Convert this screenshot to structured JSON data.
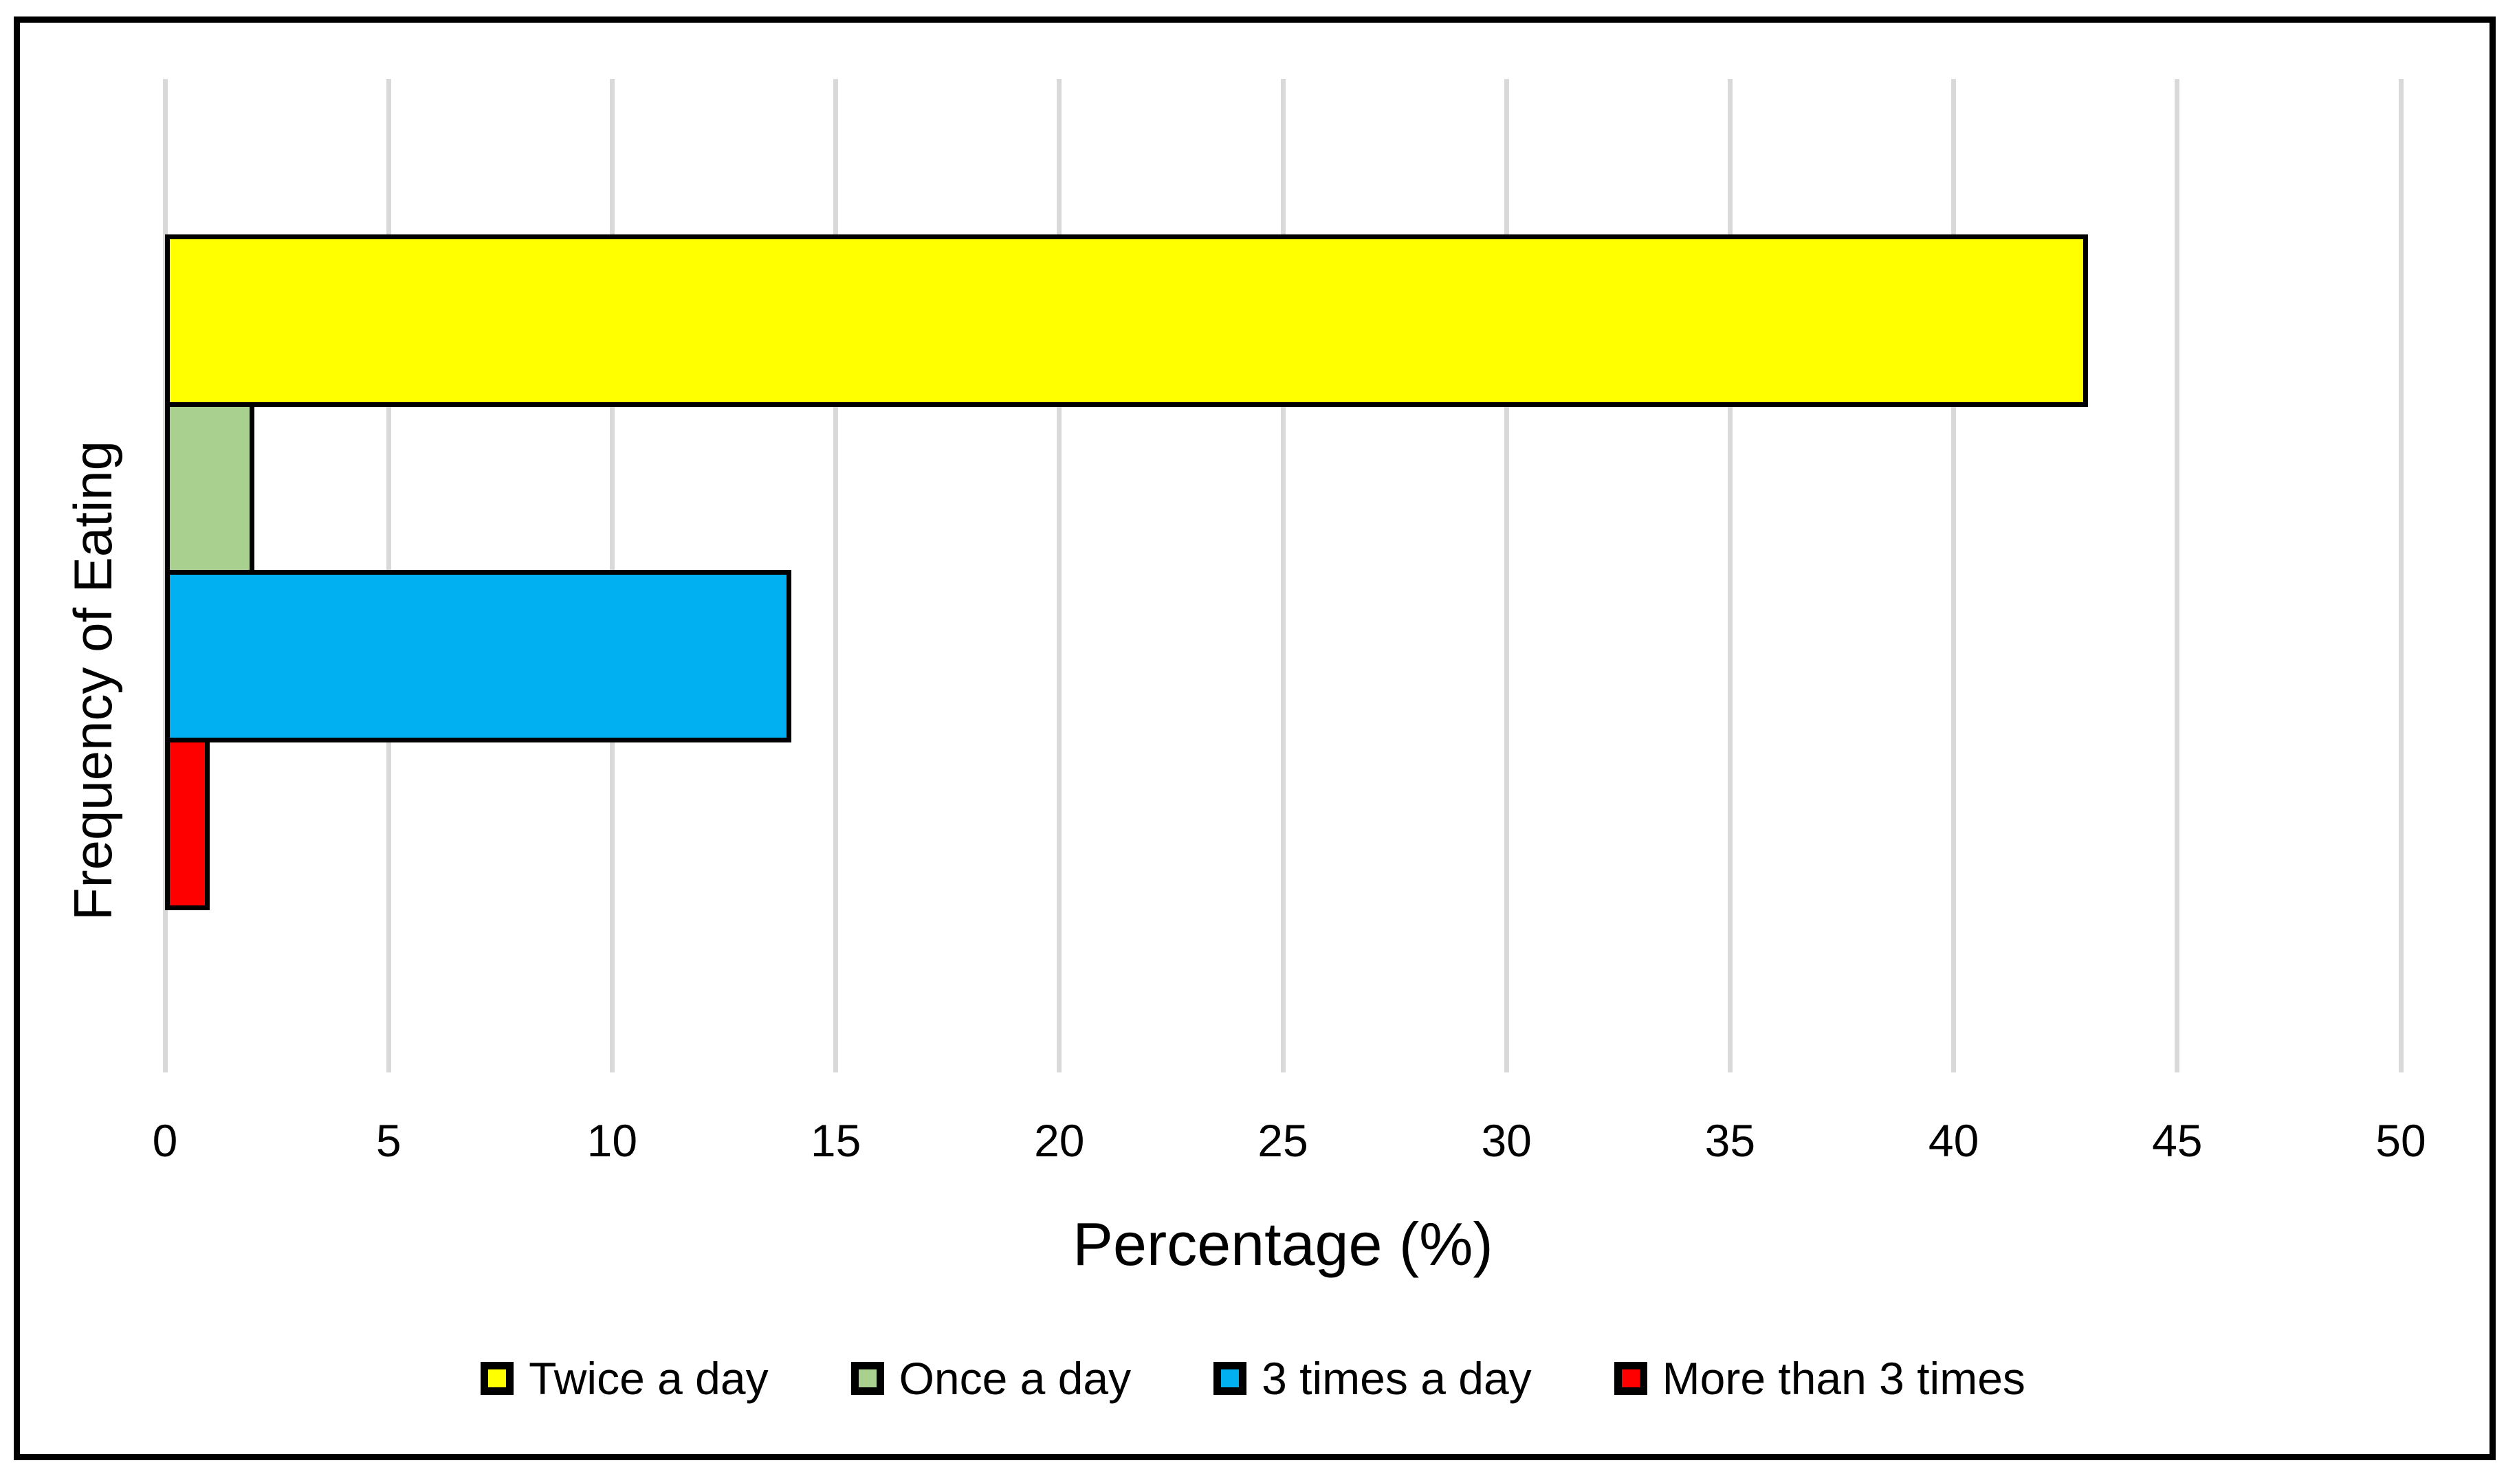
{
  "chart_data": {
    "type": "bar",
    "orientation": "horizontal",
    "title": "",
    "xlabel": "Percentage (%)",
    "ylabel": "Frequency of Eating",
    "xlim": [
      0,
      50
    ],
    "x_tick_step": 5,
    "x_ticks": [
      "0",
      "5",
      "10",
      "15",
      "20",
      "25",
      "30",
      "35",
      "40",
      "45",
      "50"
    ],
    "grid": "vertical-gridlines-on",
    "legend_position": "bottom",
    "series": [
      {
        "name": "Twice a day",
        "value": 43,
        "color": "#FFFF00"
      },
      {
        "name": "Once a day",
        "value": 2,
        "color": "#A9D08E"
      },
      {
        "name": "3 times a day",
        "value": 14,
        "color": "#00B0F0"
      },
      {
        "name": "More than 3 times",
        "value": 1,
        "color": "#FF0000"
      }
    ],
    "bar_border_color": "#000000",
    "gridline_color": "#D9D9D9",
    "frame_border_color": "#000000"
  }
}
